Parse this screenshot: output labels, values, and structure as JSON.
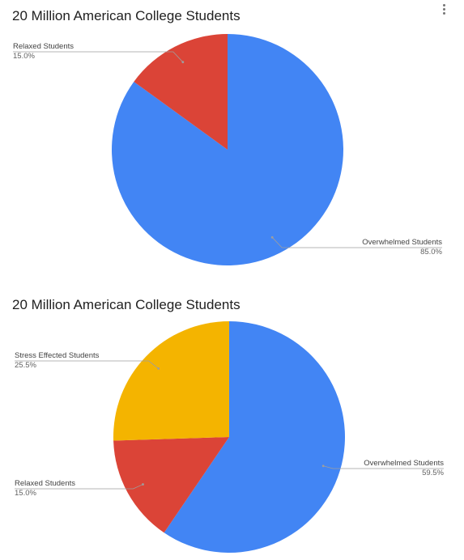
{
  "menu": {
    "icon": "more-vert-icon"
  },
  "chart_data": [
    {
      "type": "pie",
      "title": "20 Million American College Students",
      "slices": [
        {
          "label": "Overwhelmed Students",
          "value": 85.0,
          "percent_label": "85.0%",
          "color": "#4285f4"
        },
        {
          "label": "Relaxed Students",
          "value": 15.0,
          "percent_label": "15.0%",
          "color": "#db4437"
        }
      ],
      "legend": "labels"
    },
    {
      "type": "pie",
      "title": "20 Million American College Students",
      "slices": [
        {
          "label": "Overwhelmed Students",
          "value": 59.5,
          "percent_label": "59.5%",
          "color": "#4285f4"
        },
        {
          "label": "Relaxed Students",
          "value": 15.0,
          "percent_label": "15.0%",
          "color": "#db4437"
        },
        {
          "label": "Stress Effected Students",
          "value": 25.5,
          "percent_label": "25.5%",
          "color": "#f4b400"
        }
      ],
      "legend": "labels"
    }
  ]
}
